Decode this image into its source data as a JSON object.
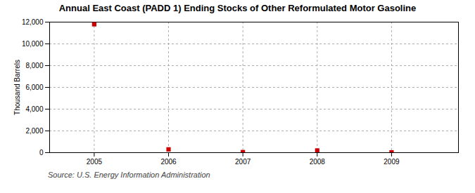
{
  "chart_data": {
    "type": "scatter",
    "title": "Annual East Coast (PADD 1) Ending Stocks of Other Reformulated Motor Gasoline",
    "ylabel": "Thousand Barrels",
    "source": "Source: U.S. Energy Information Administration",
    "x": [
      2005,
      2006,
      2007,
      2008,
      2009
    ],
    "values": [
      11800,
      300,
      50,
      200,
      30
    ],
    "color": "#cc0000",
    "marker": "square",
    "xlim": [
      2004.4,
      2009.9
    ],
    "xticks": [
      2005,
      2006,
      2007,
      2008,
      2009
    ],
    "ylim": [
      0,
      12000
    ],
    "yticks": [
      0,
      {
        "value": 2000,
        "label": "2,000"
      },
      {
        "value": 4000,
        "label": "4,000"
      },
      {
        "value": 6000,
        "label": "6,000"
      },
      {
        "value": 8000,
        "label": "8,000"
      },
      {
        "value": 10000,
        "label": "10,000"
      },
      {
        "value": 12000,
        "label": "12,000"
      }
    ],
    "grid": true
  }
}
